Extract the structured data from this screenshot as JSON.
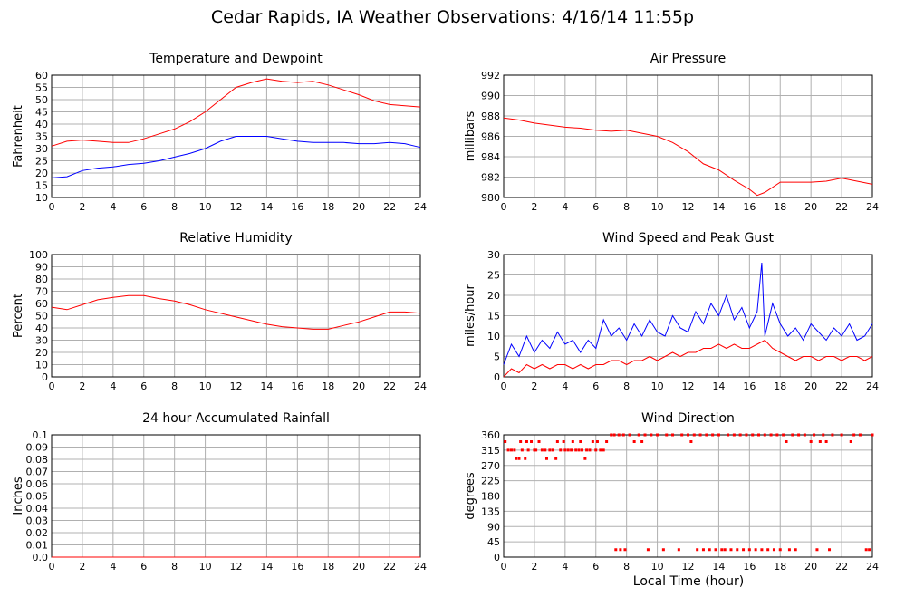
{
  "page": {
    "title": "Cedar Rapids, IA Weather Observations: 4/16/14 11:55p",
    "footer_xlabel": "Local Time (hour)"
  },
  "colors": {
    "red": "#ff0000",
    "blue": "#0000ff",
    "grid": "#b0b0b0"
  },
  "chart_data": [
    {
      "id": "temp",
      "type": "line",
      "title": "Temperature and Dewpoint",
      "xlabel": "",
      "ylabel": "Fahrenheit",
      "xlim": [
        0,
        24
      ],
      "ylim": [
        10,
        60
      ],
      "xticks": [
        0,
        2,
        4,
        6,
        8,
        10,
        12,
        14,
        16,
        18,
        20,
        22,
        24
      ],
      "yticks": [
        10,
        15,
        20,
        25,
        30,
        35,
        40,
        45,
        50,
        55,
        60
      ],
      "grid": true,
      "series": [
        {
          "color": "#ff0000",
          "x": [
            0,
            1,
            2,
            3,
            4,
            5,
            6,
            7,
            8,
            9,
            10,
            11,
            12,
            13,
            14,
            15,
            16,
            17,
            18,
            19,
            20,
            21,
            22,
            23,
            24
          ],
          "y": [
            31,
            33,
            33.5,
            33,
            32.5,
            32.5,
            34,
            36,
            38,
            41,
            45,
            50,
            55,
            57,
            58.5,
            57.5,
            57,
            57.5,
            56,
            54,
            52,
            49.5,
            48,
            47.5,
            47
          ]
        },
        {
          "color": "#0000ff",
          "x": [
            0,
            1,
            2,
            3,
            4,
            5,
            6,
            7,
            8,
            9,
            10,
            11,
            12,
            13,
            14,
            15,
            16,
            17,
            18,
            19,
            20,
            21,
            22,
            23,
            24
          ],
          "y": [
            18,
            18.5,
            21,
            22,
            22.5,
            23.5,
            24,
            25,
            26.5,
            28,
            30,
            33,
            35,
            35,
            35,
            34,
            33,
            32.5,
            32.5,
            32.5,
            32,
            32,
            32.5,
            32,
            30.5
          ]
        }
      ]
    },
    {
      "id": "pressure",
      "type": "line",
      "title": "Air Pressure",
      "xlabel": "",
      "ylabel": "millibars",
      "xlim": [
        0,
        24
      ],
      "ylim": [
        980,
        992
      ],
      "xticks": [
        0,
        2,
        4,
        6,
        8,
        10,
        12,
        14,
        16,
        18,
        20,
        22,
        24
      ],
      "yticks": [
        980,
        982,
        984,
        986,
        988,
        990,
        992
      ],
      "grid": true,
      "series": [
        {
          "color": "#ff0000",
          "x": [
            0,
            1,
            2,
            3,
            4,
            5,
            6,
            7,
            8,
            9,
            10,
            11,
            12,
            13,
            14,
            15,
            16,
            16.5,
            17,
            18,
            19,
            20,
            21,
            22,
            23,
            24
          ],
          "y": [
            987.8,
            987.6,
            987.3,
            987.1,
            986.9,
            986.8,
            986.6,
            986.5,
            986.6,
            986.3,
            986.0,
            985.4,
            984.5,
            983.3,
            982.7,
            981.7,
            980.8,
            980.2,
            980.5,
            981.5,
            981.5,
            981.5,
            981.6,
            981.9,
            981.6,
            981.3
          ]
        }
      ]
    },
    {
      "id": "humidity",
      "type": "line",
      "title": "Relative Humidity",
      "xlabel": "",
      "ylabel": "Percent",
      "xlim": [
        0,
        24
      ],
      "ylim": [
        0,
        100
      ],
      "xticks": [
        0,
        2,
        4,
        6,
        8,
        10,
        12,
        14,
        16,
        18,
        20,
        22,
        24
      ],
      "yticks": [
        0,
        10,
        20,
        30,
        40,
        50,
        60,
        70,
        80,
        90,
        100
      ],
      "grid": true,
      "series": [
        {
          "color": "#ff0000",
          "x": [
            0,
            1,
            2,
            3,
            4,
            5,
            6,
            7,
            8,
            9,
            10,
            11,
            12,
            13,
            14,
            15,
            16,
            17,
            18,
            19,
            20,
            21,
            22,
            23,
            24
          ],
          "y": [
            57,
            55,
            59,
            63,
            65,
            66.5,
            66.5,
            64,
            62,
            59,
            55,
            52,
            49,
            46,
            43,
            41,
            40,
            39,
            39,
            42,
            45,
            49,
            53,
            53,
            52
          ]
        }
      ]
    },
    {
      "id": "wind",
      "type": "line",
      "title": "Wind Speed and Peak Gust",
      "xlabel": "",
      "ylabel": "miles/hour",
      "xlim": [
        0,
        24
      ],
      "ylim": [
        0,
        30
      ],
      "xticks": [
        0,
        2,
        4,
        6,
        8,
        10,
        12,
        14,
        16,
        18,
        20,
        22,
        24
      ],
      "yticks": [
        0,
        5,
        10,
        15,
        20,
        25,
        30
      ],
      "grid": true,
      "series": [
        {
          "color": "#0000ff",
          "x": [
            0,
            0.5,
            1,
            1.5,
            2,
            2.5,
            3,
            3.5,
            4,
            4.5,
            5,
            5.5,
            6,
            6.5,
            7,
            7.5,
            8,
            8.5,
            9,
            9.5,
            10,
            10.5,
            11,
            11.5,
            12,
            12.5,
            13,
            13.5,
            14,
            14.5,
            15,
            15.5,
            16,
            16.5,
            16.8,
            17,
            17.5,
            18,
            18.5,
            19,
            19.5,
            20,
            20.5,
            21,
            21.5,
            22,
            22.5,
            23,
            23.5,
            24
          ],
          "y": [
            3,
            8,
            5,
            10,
            6,
            9,
            7,
            11,
            8,
            9,
            6,
            9,
            7,
            14,
            10,
            12,
            9,
            13,
            10,
            14,
            11,
            10,
            15,
            12,
            11,
            16,
            13,
            18,
            15,
            20,
            14,
            17,
            12,
            16,
            28,
            10,
            18,
            13,
            10,
            12,
            9,
            13,
            11,
            9,
            12,
            10,
            13,
            9,
            10,
            13
          ]
        },
        {
          "color": "#ff0000",
          "x": [
            0,
            0.5,
            1,
            1.5,
            2,
            2.5,
            3,
            3.5,
            4,
            4.5,
            5,
            5.5,
            6,
            6.5,
            7,
            7.5,
            8,
            8.5,
            9,
            9.5,
            10,
            10.5,
            11,
            11.5,
            12,
            12.5,
            13,
            13.5,
            14,
            14.5,
            15,
            15.5,
            16,
            16.5,
            17,
            17.5,
            18,
            18.5,
            19,
            19.5,
            20,
            20.5,
            21,
            21.5,
            22,
            22.5,
            23,
            23.5,
            24
          ],
          "y": [
            0,
            2,
            1,
            3,
            2,
            3,
            2,
            3,
            3,
            2,
            3,
            2,
            3,
            3,
            4,
            4,
            3,
            4,
            4,
            5,
            4,
            5,
            6,
            5,
            6,
            6,
            7,
            7,
            8,
            7,
            8,
            7,
            7,
            8,
            9,
            7,
            6,
            5,
            4,
            5,
            5,
            4,
            5,
            5,
            4,
            5,
            5,
            4,
            5
          ]
        }
      ]
    },
    {
      "id": "rain",
      "type": "line",
      "title": "24 hour Accumulated Rainfall",
      "xlabel": "",
      "ylabel": "Inches",
      "xlim": [
        0,
        24
      ],
      "ylim": [
        0,
        0.1
      ],
      "xticks": [
        0,
        2,
        4,
        6,
        8,
        10,
        12,
        14,
        16,
        18,
        20,
        22,
        24
      ],
      "yticks": [
        0.0,
        0.01,
        0.02,
        0.03,
        0.04,
        0.05,
        0.06,
        0.07,
        0.08,
        0.09,
        0.1
      ],
      "ytick_labels": [
        "0.0",
        "0.01",
        "0.02",
        "0.03",
        "0.04",
        "0.05",
        "0.06",
        "0.07",
        "0.08",
        "0.09",
        "0.1"
      ],
      "grid": true,
      "series": [
        {
          "color": "#ff0000",
          "x": [
            0,
            24
          ],
          "y": [
            0,
            0
          ]
        }
      ]
    },
    {
      "id": "direction",
      "type": "scatter",
      "title": "Wind Direction",
      "xlabel": "Local Time (hour)",
      "ylabel": "degrees",
      "xlim": [
        0,
        24
      ],
      "ylim": [
        0,
        360
      ],
      "xticks": [
        0,
        2,
        4,
        6,
        8,
        10,
        12,
        14,
        16,
        18,
        20,
        22,
        24
      ],
      "yticks": [
        0,
        45,
        90,
        135,
        180,
        225,
        270,
        315,
        360
      ],
      "grid": true,
      "series": [
        {
          "color": "#ff0000",
          "points": [
            [
              0.1,
              340
            ],
            [
              0.3,
              315
            ],
            [
              0.5,
              315
            ],
            [
              0.7,
              315
            ],
            [
              0.8,
              290
            ],
            [
              1.0,
              290
            ],
            [
              1.1,
              340
            ],
            [
              1.2,
              315
            ],
            [
              1.4,
              290
            ],
            [
              1.5,
              340
            ],
            [
              1.6,
              315
            ],
            [
              1.8,
              340
            ],
            [
              2.0,
              315
            ],
            [
              2.1,
              315
            ],
            [
              2.3,
              340
            ],
            [
              2.5,
              315
            ],
            [
              2.7,
              315
            ],
            [
              2.8,
              290
            ],
            [
              3.0,
              315
            ],
            [
              3.2,
              315
            ],
            [
              3.4,
              290
            ],
            [
              3.5,
              340
            ],
            [
              3.7,
              315
            ],
            [
              3.9,
              340
            ],
            [
              4.0,
              315
            ],
            [
              4.2,
              315
            ],
            [
              4.4,
              315
            ],
            [
              4.5,
              340
            ],
            [
              4.7,
              315
            ],
            [
              4.9,
              315
            ],
            [
              5.0,
              340
            ],
            [
              5.1,
              315
            ],
            [
              5.3,
              290
            ],
            [
              5.4,
              315
            ],
            [
              5.6,
              315
            ],
            [
              5.8,
              340
            ],
            [
              6.0,
              315
            ],
            [
              6.1,
              340
            ],
            [
              6.3,
              315
            ],
            [
              6.5,
              315
            ],
            [
              6.7,
              340
            ],
            [
              7.0,
              360
            ],
            [
              7.2,
              360
            ],
            [
              7.3,
              22
            ],
            [
              7.5,
              360
            ],
            [
              7.6,
              22
            ],
            [
              7.8,
              360
            ],
            [
              7.9,
              22
            ],
            [
              8.2,
              360
            ],
            [
              8.5,
              340
            ],
            [
              8.8,
              360
            ],
            [
              9.0,
              340
            ],
            [
              9.2,
              360
            ],
            [
              9.4,
              22
            ],
            [
              9.6,
              360
            ],
            [
              10.0,
              360
            ],
            [
              10.4,
              22
            ],
            [
              10.6,
              360
            ],
            [
              11.0,
              360
            ],
            [
              11.4,
              22
            ],
            [
              11.6,
              360
            ],
            [
              12.0,
              360
            ],
            [
              12.2,
              340
            ],
            [
              12.4,
              360
            ],
            [
              12.6,
              22
            ],
            [
              12.8,
              360
            ],
            [
              13.0,
              22
            ],
            [
              13.2,
              360
            ],
            [
              13.4,
              22
            ],
            [
              13.6,
              360
            ],
            [
              13.8,
              22
            ],
            [
              14.0,
              360
            ],
            [
              14.2,
              22
            ],
            [
              14.4,
              22
            ],
            [
              14.6,
              360
            ],
            [
              14.8,
              22
            ],
            [
              15.0,
              360
            ],
            [
              15.2,
              22
            ],
            [
              15.4,
              360
            ],
            [
              15.6,
              22
            ],
            [
              15.8,
              360
            ],
            [
              16.0,
              22
            ],
            [
              16.2,
              360
            ],
            [
              16.4,
              22
            ],
            [
              16.6,
              360
            ],
            [
              16.8,
              22
            ],
            [
              17.0,
              360
            ],
            [
              17.2,
              22
            ],
            [
              17.4,
              360
            ],
            [
              17.6,
              22
            ],
            [
              17.8,
              360
            ],
            [
              18.0,
              22
            ],
            [
              18.2,
              360
            ],
            [
              18.4,
              340
            ],
            [
              18.6,
              22
            ],
            [
              18.8,
              360
            ],
            [
              19.0,
              22
            ],
            [
              19.2,
              360
            ],
            [
              19.6,
              360
            ],
            [
              20.0,
              340
            ],
            [
              20.2,
              360
            ],
            [
              20.4,
              22
            ],
            [
              20.6,
              340
            ],
            [
              20.8,
              360
            ],
            [
              21.0,
              340
            ],
            [
              21.2,
              22
            ],
            [
              21.4,
              360
            ],
            [
              22.0,
              360
            ],
            [
              22.6,
              340
            ],
            [
              22.8,
              360
            ],
            [
              23.2,
              360
            ],
            [
              23.6,
              22
            ],
            [
              23.8,
              22
            ],
            [
              24.0,
              360
            ]
          ]
        }
      ]
    }
  ]
}
